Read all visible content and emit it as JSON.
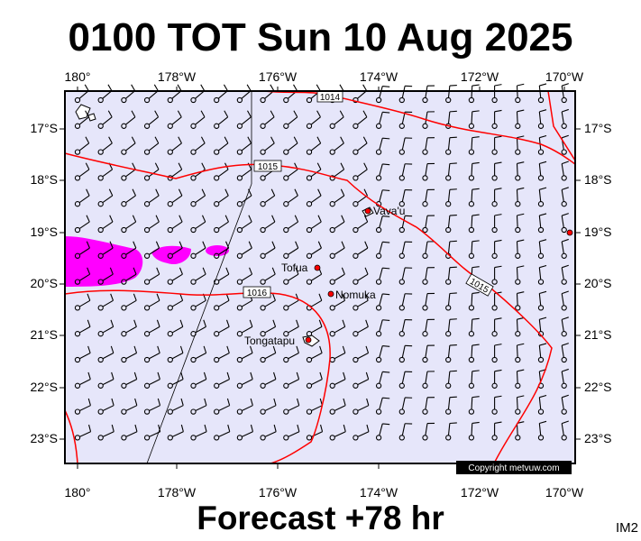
{
  "header": {
    "title": "0100 TOT Sun 10 Aug 2025"
  },
  "footer": {
    "forecast": "Forecast +78 hr",
    "code": "IM2"
  },
  "copyright": "Copyright metvuw.com",
  "map": {
    "lon_labels": [
      "180°",
      "178°W",
      "176°W",
      "174°W",
      "172°W",
      "170°W"
    ],
    "lat_labels": [
      "17°S",
      "18°S",
      "19°S",
      "20°S",
      "21°S",
      "22°S",
      "23°S"
    ],
    "places": [
      "Vava'u",
      "Tofua",
      "Nomuka",
      "Tongatapu"
    ],
    "isobars": [
      "1014",
      "1015",
      "1015",
      "1016"
    ],
    "colors": {
      "background": "#e6e6fa",
      "isobar": "#ff0000",
      "precipitation": "#ff00ff",
      "place_marker": "#ff0000"
    }
  }
}
